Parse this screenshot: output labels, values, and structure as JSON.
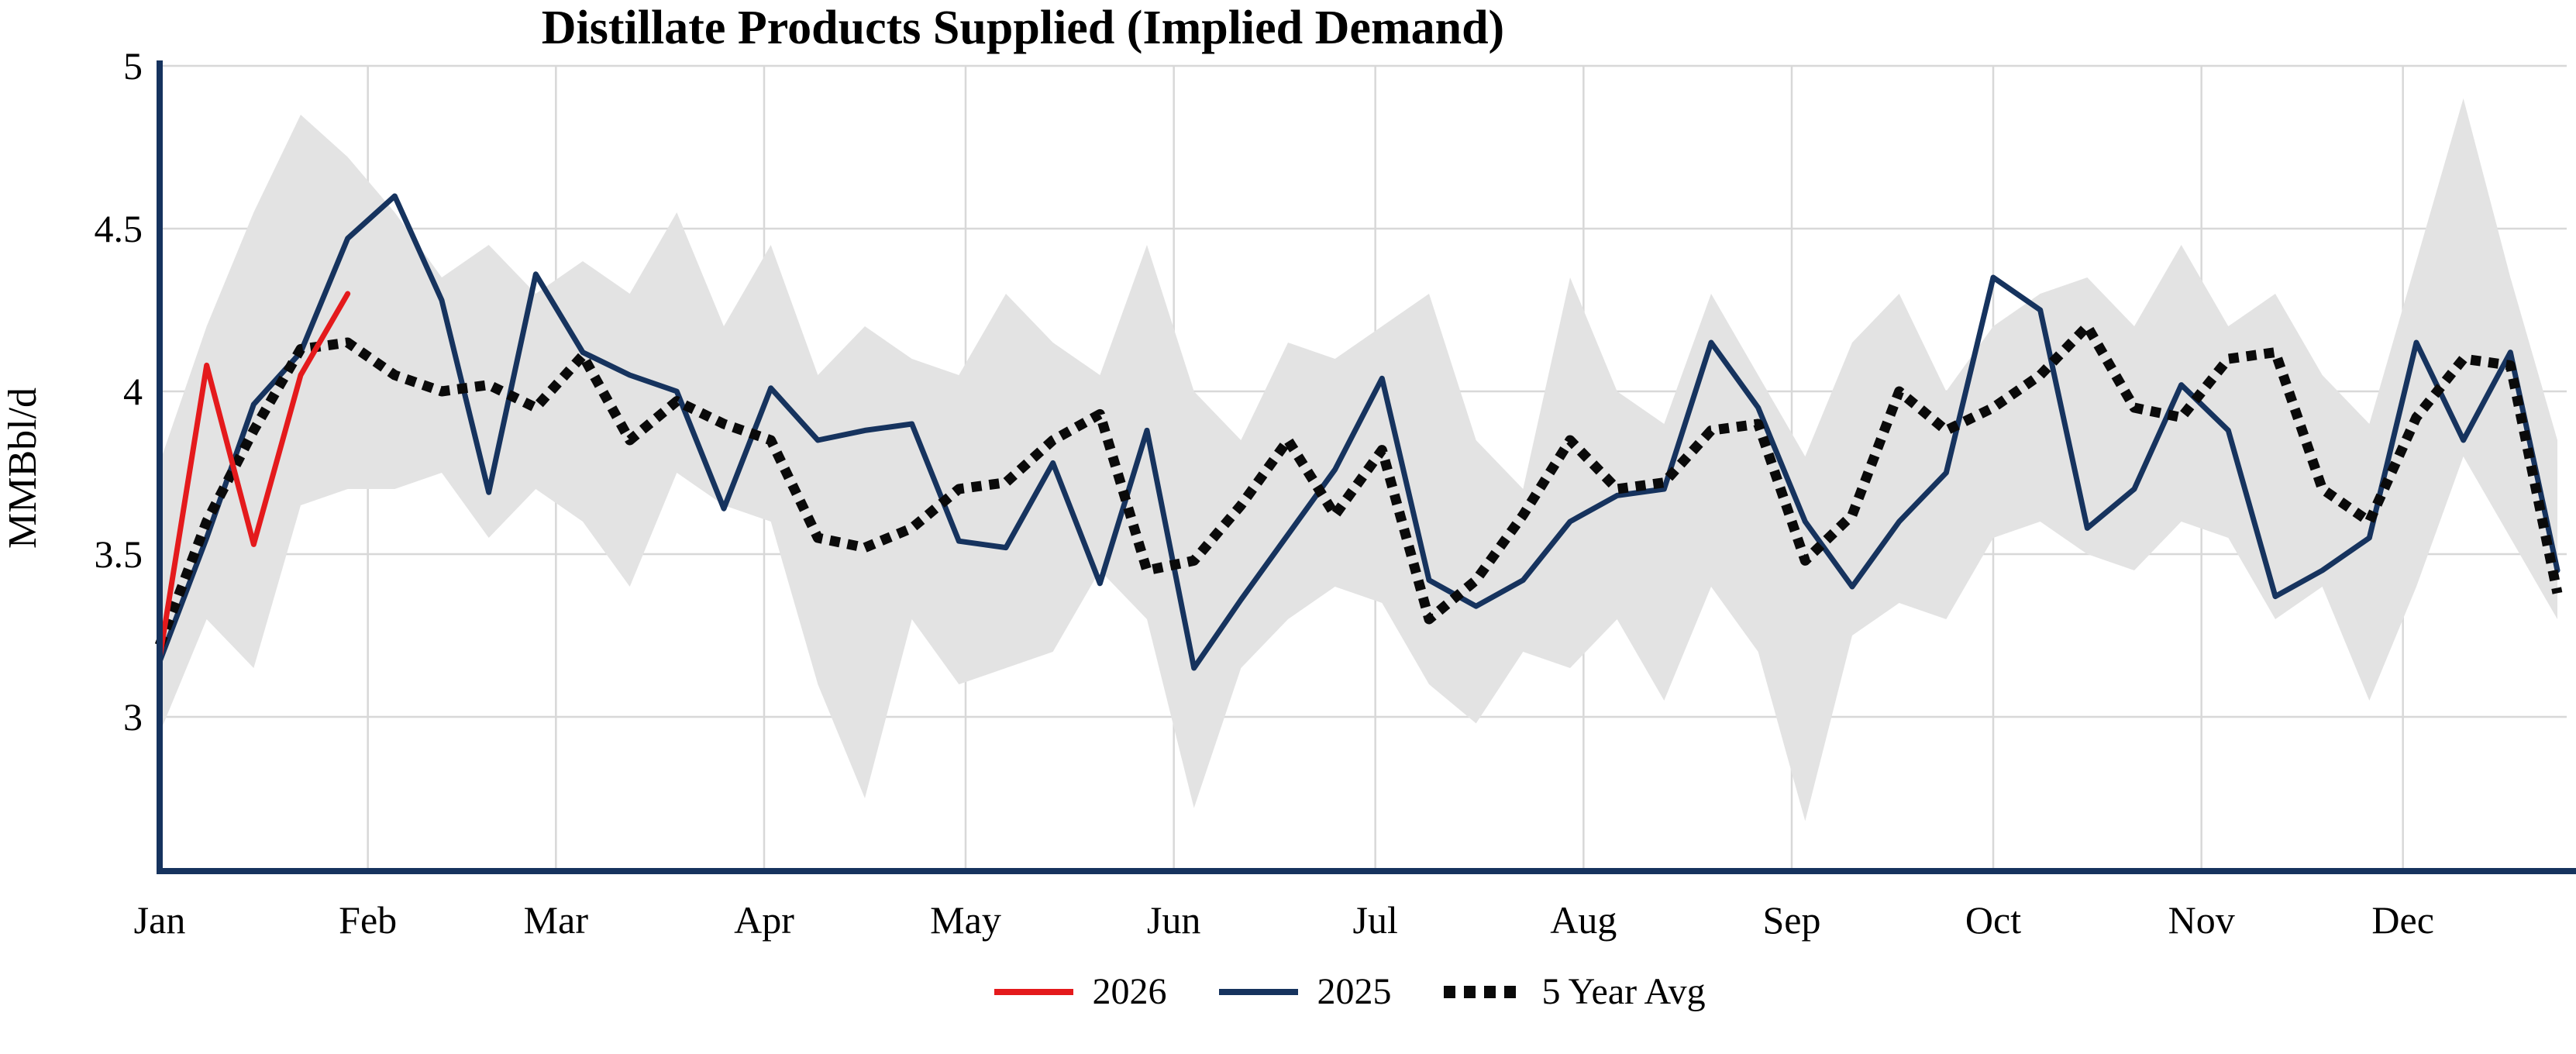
{
  "chart_data": {
    "type": "line",
    "title": "Distillate Products Supplied (Implied Demand)",
    "ylabel": "MMBbl/d",
    "ylim": [
      2.53,
      5.0
    ],
    "yticks": [
      3,
      3.5,
      4,
      4.5,
      5
    ],
    "ytick_labels": [
      "3",
      "3.5",
      "4",
      "4.5",
      "5"
    ],
    "x_unit": "weekly",
    "months": [
      "Jan",
      "Feb",
      "Mar",
      "Apr",
      "May",
      "Jun",
      "Jul",
      "Aug",
      "Sep",
      "Oct",
      "Nov",
      "Dec"
    ],
    "month_start_days": [
      0,
      31,
      59,
      90,
      120,
      151,
      181,
      212,
      243,
      273,
      304,
      334
    ],
    "days_total": 357,
    "grid": true,
    "legend_position": "bottom",
    "colors": {
      "axis": "#16335e",
      "grid": "#d8d8d8",
      "background": "#ffffff"
    },
    "range_band": {
      "color": "#e3e3e3",
      "upper": [
        3.78,
        4.2,
        4.55,
        4.85,
        4.72,
        4.55,
        4.35,
        4.45,
        4.3,
        4.4,
        4.3,
        4.55,
        4.2,
        4.45,
        4.05,
        4.2,
        4.1,
        4.05,
        4.3,
        4.15,
        4.05,
        4.45,
        4.0,
        3.85,
        4.15,
        4.1,
        4.2,
        4.3,
        3.85,
        3.7,
        4.35,
        4.0,
        3.9,
        4.3,
        4.05,
        3.8,
        4.15,
        4.3,
        4.0,
        4.2,
        4.3,
        4.35,
        4.2,
        4.45,
        4.2,
        4.3,
        4.05,
        3.9,
        4.4,
        4.9,
        4.35,
        3.85
      ],
      "lower": [
        2.95,
        3.3,
        3.15,
        3.65,
        3.7,
        3.7,
        3.75,
        3.55,
        3.7,
        3.6,
        3.4,
        3.75,
        3.65,
        3.6,
        3.1,
        2.75,
        3.3,
        3.1,
        3.15,
        3.2,
        3.45,
        3.3,
        2.72,
        3.15,
        3.3,
        3.4,
        3.35,
        3.1,
        2.98,
        3.2,
        3.15,
        3.3,
        3.05,
        3.4,
        3.2,
        2.68,
        3.25,
        3.35,
        3.3,
        3.55,
        3.6,
        3.5,
        3.45,
        3.6,
        3.55,
        3.3,
        3.4,
        3.05,
        3.4,
        3.8,
        3.55,
        3.3
      ]
    },
    "series": [
      {
        "name": "2026",
        "color": "#e41a1c",
        "style": "solid",
        "values": [
          3.18,
          4.08,
          3.53,
          4.05,
          4.3
        ]
      },
      {
        "name": "2025",
        "color": "#16335e",
        "style": "solid",
        "values": [
          3.17,
          3.55,
          3.96,
          4.12,
          4.47,
          4.6,
          4.28,
          3.69,
          4.36,
          4.12,
          4.05,
          4.0,
          3.64,
          4.01,
          3.85,
          3.88,
          3.9,
          3.54,
          3.52,
          3.78,
          3.41,
          3.88,
          3.15,
          3.36,
          3.56,
          3.76,
          4.04,
          3.42,
          3.34,
          3.42,
          3.6,
          3.68,
          3.7,
          4.15,
          3.95,
          3.6,
          3.4,
          3.6,
          3.75,
          4.35,
          4.25,
          3.58,
          3.7,
          4.02,
          3.88,
          3.37,
          3.45,
          3.55,
          4.15,
          3.85,
          4.12,
          3.45
        ]
      },
      {
        "name": "5 Year Avg",
        "color": "#0a0a0a",
        "style": "dotted",
        "values": [
          3.22,
          3.6,
          3.88,
          4.13,
          4.15,
          4.05,
          4.0,
          4.02,
          3.95,
          4.11,
          3.85,
          3.97,
          3.9,
          3.85,
          3.55,
          3.52,
          3.58,
          3.7,
          3.72,
          3.85,
          3.93,
          3.45,
          3.48,
          3.65,
          3.85,
          3.62,
          3.82,
          3.3,
          3.42,
          3.62,
          3.85,
          3.7,
          3.72,
          3.88,
          3.9,
          3.48,
          3.62,
          4.0,
          3.88,
          3.95,
          4.05,
          4.2,
          3.95,
          3.92,
          4.1,
          4.12,
          3.7,
          3.6,
          3.92,
          4.1,
          4.08,
          3.38
        ]
      }
    ]
  }
}
